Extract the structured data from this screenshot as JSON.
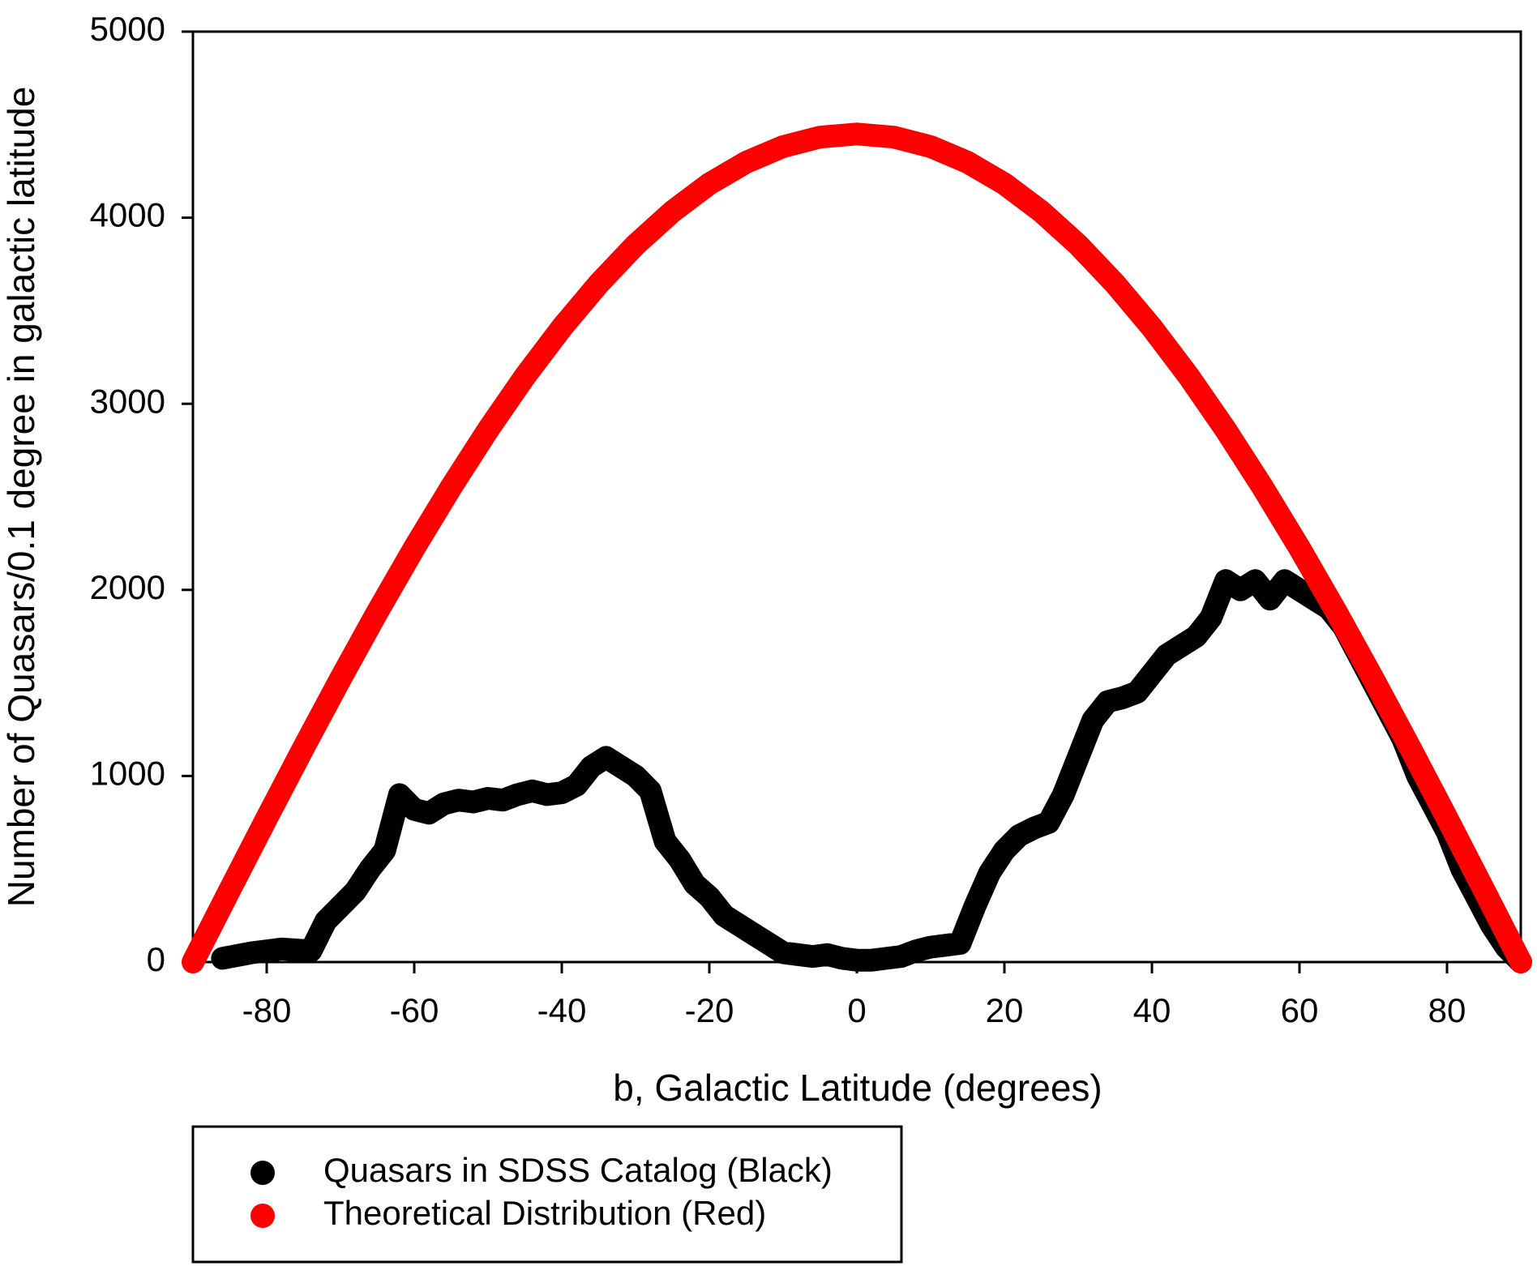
{
  "chart_data": {
    "type": "scatter",
    "x_label": "b, Galactic Latitude (degrees)",
    "y_label": "Number of Quasars/0.1 degree in galactic latitude",
    "xlim": [
      -90,
      90
    ],
    "xticks": [
      -80,
      -60,
      -40,
      -20,
      0,
      20,
      40,
      60,
      80
    ],
    "ylim": [
      0,
      5000
    ],
    "yticks": [
      0,
      1000,
      2000,
      3000,
      4000,
      5000
    ],
    "legend": "bottom-left",
    "series": [
      {
        "name": "Quasars in SDSS Catalog (Black)",
        "color": "#000000",
        "x": [
          -86,
          -82,
          -78,
          -74,
          -72,
          -70,
          -68,
          -66,
          -64,
          -62,
          -60,
          -58,
          -56,
          -54,
          -52,
          -50,
          -48,
          -46,
          -44,
          -42,
          -40,
          -38,
          -36,
          -34,
          -32,
          -30,
          -28,
          -26,
          -24,
          -22,
          -20,
          -18,
          -16,
          -14,
          -12,
          -10,
          -8,
          -6,
          -4,
          -2,
          0,
          2,
          4,
          6,
          8,
          10,
          12,
          14,
          16,
          18,
          20,
          22,
          24,
          26,
          28,
          30,
          32,
          34,
          36,
          38,
          40,
          42,
          44,
          46,
          48,
          50,
          52,
          54,
          56,
          58,
          60,
          62,
          64,
          66,
          68,
          70,
          72,
          74,
          76,
          78,
          80,
          82,
          84,
          86,
          88,
          90
        ],
        "values": [
          20,
          50,
          70,
          60,
          220,
          300,
          380,
          500,
          600,
          900,
          820,
          800,
          850,
          870,
          860,
          880,
          870,
          900,
          920,
          900,
          910,
          950,
          1050,
          1100,
          1050,
          1000,
          920,
          650,
          550,
          420,
          350,
          250,
          200,
          150,
          100,
          50,
          40,
          30,
          40,
          20,
          10,
          10,
          20,
          30,
          60,
          80,
          90,
          100,
          300,
          480,
          600,
          680,
          720,
          750,
          900,
          1100,
          1300,
          1400,
          1420,
          1450,
          1550,
          1650,
          1700,
          1750,
          1850,
          2050,
          2000,
          2050,
          1950,
          2050,
          2000,
          1950,
          1900,
          1800,
          1650,
          1500,
          1350,
          1200,
          1000,
          850,
          700,
          500,
          350,
          200,
          80,
          0
        ]
      },
      {
        "name": "Theoretical Distribution (Red)",
        "color": "#ff0000",
        "x": [
          -90,
          -85,
          -80,
          -75,
          -70,
          -65,
          -60,
          -55,
          -50,
          -45,
          -40,
          -35,
          -30,
          -25,
          -20,
          -15,
          -10,
          -5,
          0,
          5,
          10,
          15,
          20,
          25,
          30,
          35,
          40,
          45,
          50,
          55,
          60,
          65,
          70,
          75,
          80,
          85,
          90
        ],
        "values": [
          0,
          388,
          773,
          1152,
          1522,
          1881,
          2225,
          2552,
          2860,
          3147,
          3409,
          3645,
          3854,
          4033,
          4182,
          4298,
          4382,
          4433,
          4450,
          4433,
          4382,
          4298,
          4182,
          4033,
          3854,
          3645,
          3409,
          3147,
          2860,
          2552,
          2225,
          1881,
          1522,
          1152,
          773,
          388,
          0
        ]
      }
    ]
  }
}
